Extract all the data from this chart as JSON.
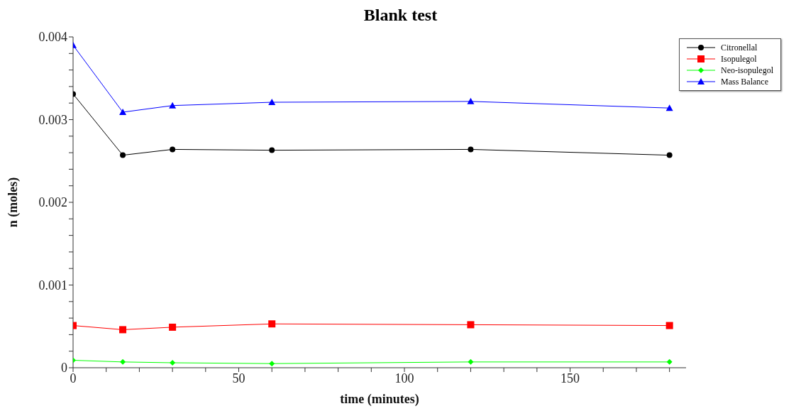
{
  "chart_data": {
    "type": "line",
    "title": "Blank test",
    "xlabel": "time (minutes)",
    "ylabel": "n (moles)",
    "x": [
      0,
      15,
      30,
      60,
      120,
      180
    ],
    "series": [
      {
        "name": "Citronellal",
        "color": "#000000",
        "marker": "circle",
        "values": [
          0.00331,
          0.00257,
          0.00264,
          0.00263,
          0.00264,
          0.00257
        ]
      },
      {
        "name": "Isopulegol",
        "color": "#ff0000",
        "marker": "square",
        "values": [
          0.00051,
          0.00046,
          0.00049,
          0.00053,
          0.00052,
          0.00051
        ]
      },
      {
        "name": "Neo-isopulegol",
        "color": "#00ff00",
        "marker": "diamond",
        "values": [
          9e-05,
          7e-05,
          6e-05,
          5e-05,
          7e-05,
          7e-05
        ]
      },
      {
        "name": "Mass Balance",
        "color": "#0000ff",
        "marker": "triangle",
        "values": [
          0.0039,
          0.00309,
          0.00317,
          0.00321,
          0.00322,
          0.00314
        ]
      }
    ],
    "xlim": [
      0,
      185
    ],
    "xticks": [
      0,
      {
        "value": 10,
        "label": null
      },
      {
        "value": 20,
        "label": null
      },
      {
        "value": 30,
        "label": null
      },
      {
        "value": 40,
        "label": null
      },
      50,
      {
        "value": 60,
        "label": null
      },
      {
        "value": 70,
        "label": null
      },
      {
        "value": 80,
        "label": null
      },
      {
        "value": 90,
        "label": null
      },
      100,
      {
        "value": 110,
        "label": null
      },
      {
        "value": 120,
        "label": null
      },
      {
        "value": 130,
        "label": null
      },
      {
        "value": 140,
        "label": null
      },
      150,
      {
        "value": 160,
        "label": null
      },
      {
        "value": 170,
        "label": null
      },
      {
        "value": 180,
        "label": null
      }
    ],
    "ylim": [
      0,
      0.004
    ],
    "yticks": [
      0,
      {
        "value": 0.0002,
        "label": null
      },
      {
        "value": 0.0004,
        "label": null
      },
      {
        "value": 0.0006,
        "label": null
      },
      {
        "value": 0.0008,
        "label": null
      },
      0.001,
      {
        "value": 0.0012,
        "label": null
      },
      {
        "value": 0.0014,
        "label": null
      },
      {
        "value": 0.0016,
        "label": null
      },
      {
        "value": 0.0018,
        "label": null
      },
      0.002,
      {
        "value": 0.0022,
        "label": null
      },
      {
        "value": 0.0024,
        "label": null
      },
      {
        "value": 0.0026,
        "label": null
      },
      {
        "value": 0.0028,
        "label": null
      },
      0.003,
      {
        "value": 0.0032,
        "label": null
      },
      {
        "value": 0.0034,
        "label": null
      },
      {
        "value": 0.0036,
        "label": null
      },
      {
        "value": 0.0038,
        "label": null
      },
      0.004
    ],
    "grid": false,
    "legend": "top right",
    "line_style": "solid"
  }
}
